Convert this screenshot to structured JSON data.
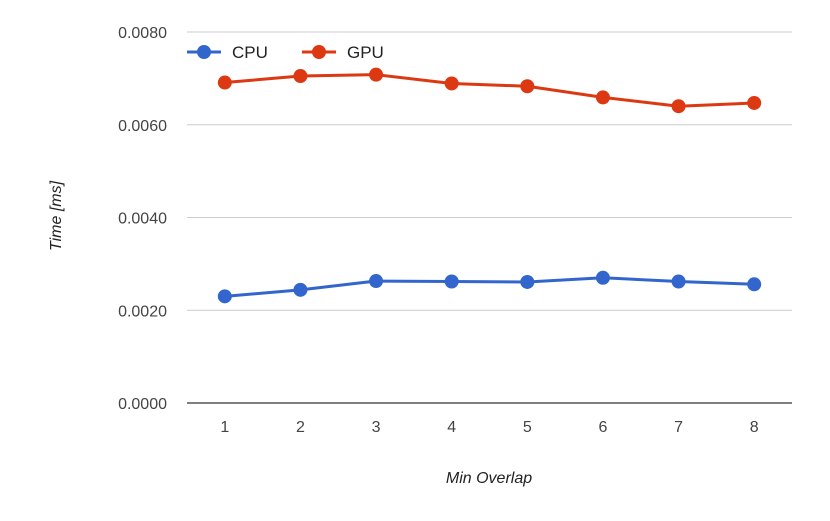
{
  "chart_data": {
    "type": "line",
    "title": "",
    "xlabel": "Min Overlap",
    "ylabel": "Time [ms]",
    "categories": [
      "1",
      "2",
      "3",
      "4",
      "5",
      "6",
      "7",
      "8"
    ],
    "ylim": [
      0,
      0.008
    ],
    "yticks": [
      "0.0000",
      "0.0020",
      "0.0040",
      "0.0060",
      "0.0080"
    ],
    "ytick_values": [
      0,
      0.002,
      0.004,
      0.006,
      0.008
    ],
    "grid": true,
    "legend_position": "top-left",
    "series": [
      {
        "name": "CPU",
        "color": "#3366cc",
        "values": [
          0.0023,
          0.00244,
          0.00263,
          0.00262,
          0.00261,
          0.0027,
          0.00262,
          0.00256
        ]
      },
      {
        "name": "GPU",
        "color": "#dc3912",
        "values": [
          0.00691,
          0.00705,
          0.00708,
          0.00689,
          0.00683,
          0.00659,
          0.0064,
          0.00647
        ]
      }
    ]
  }
}
